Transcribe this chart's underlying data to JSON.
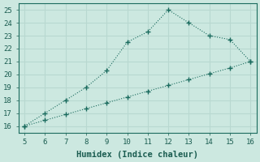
{
  "upper_x": [
    5,
    6,
    7,
    8,
    9,
    10,
    11,
    12,
    13,
    14,
    15,
    16
  ],
  "upper_y": [
    16,
    17,
    18,
    19,
    20.3,
    22.5,
    23.3,
    25,
    24,
    23,
    22.7,
    21
  ],
  "lower_x": [
    5,
    6,
    7,
    8,
    9,
    10,
    11,
    12,
    13,
    14,
    15,
    16
  ],
  "lower_y": [
    16,
    16.45,
    16.9,
    17.35,
    17.8,
    18.25,
    18.7,
    19.15,
    19.6,
    20.05,
    20.5,
    21
  ],
  "line_color": "#1a6b5e",
  "bg_color": "#cce8e0",
  "grid_color": "#b8d8d0",
  "xlabel": "Humidex (Indice chaleur)",
  "xlim": [
    5,
    16
  ],
  "ylim": [
    16,
    25
  ],
  "xticks": [
    5,
    6,
    7,
    8,
    9,
    10,
    11,
    12,
    13,
    14,
    15,
    16
  ],
  "yticks": [
    16,
    17,
    18,
    19,
    20,
    21,
    22,
    23,
    24,
    25
  ],
  "markersize": 4,
  "linewidth": 0.8,
  "font_color": "#1a5c50",
  "label_fontsize": 7.5
}
